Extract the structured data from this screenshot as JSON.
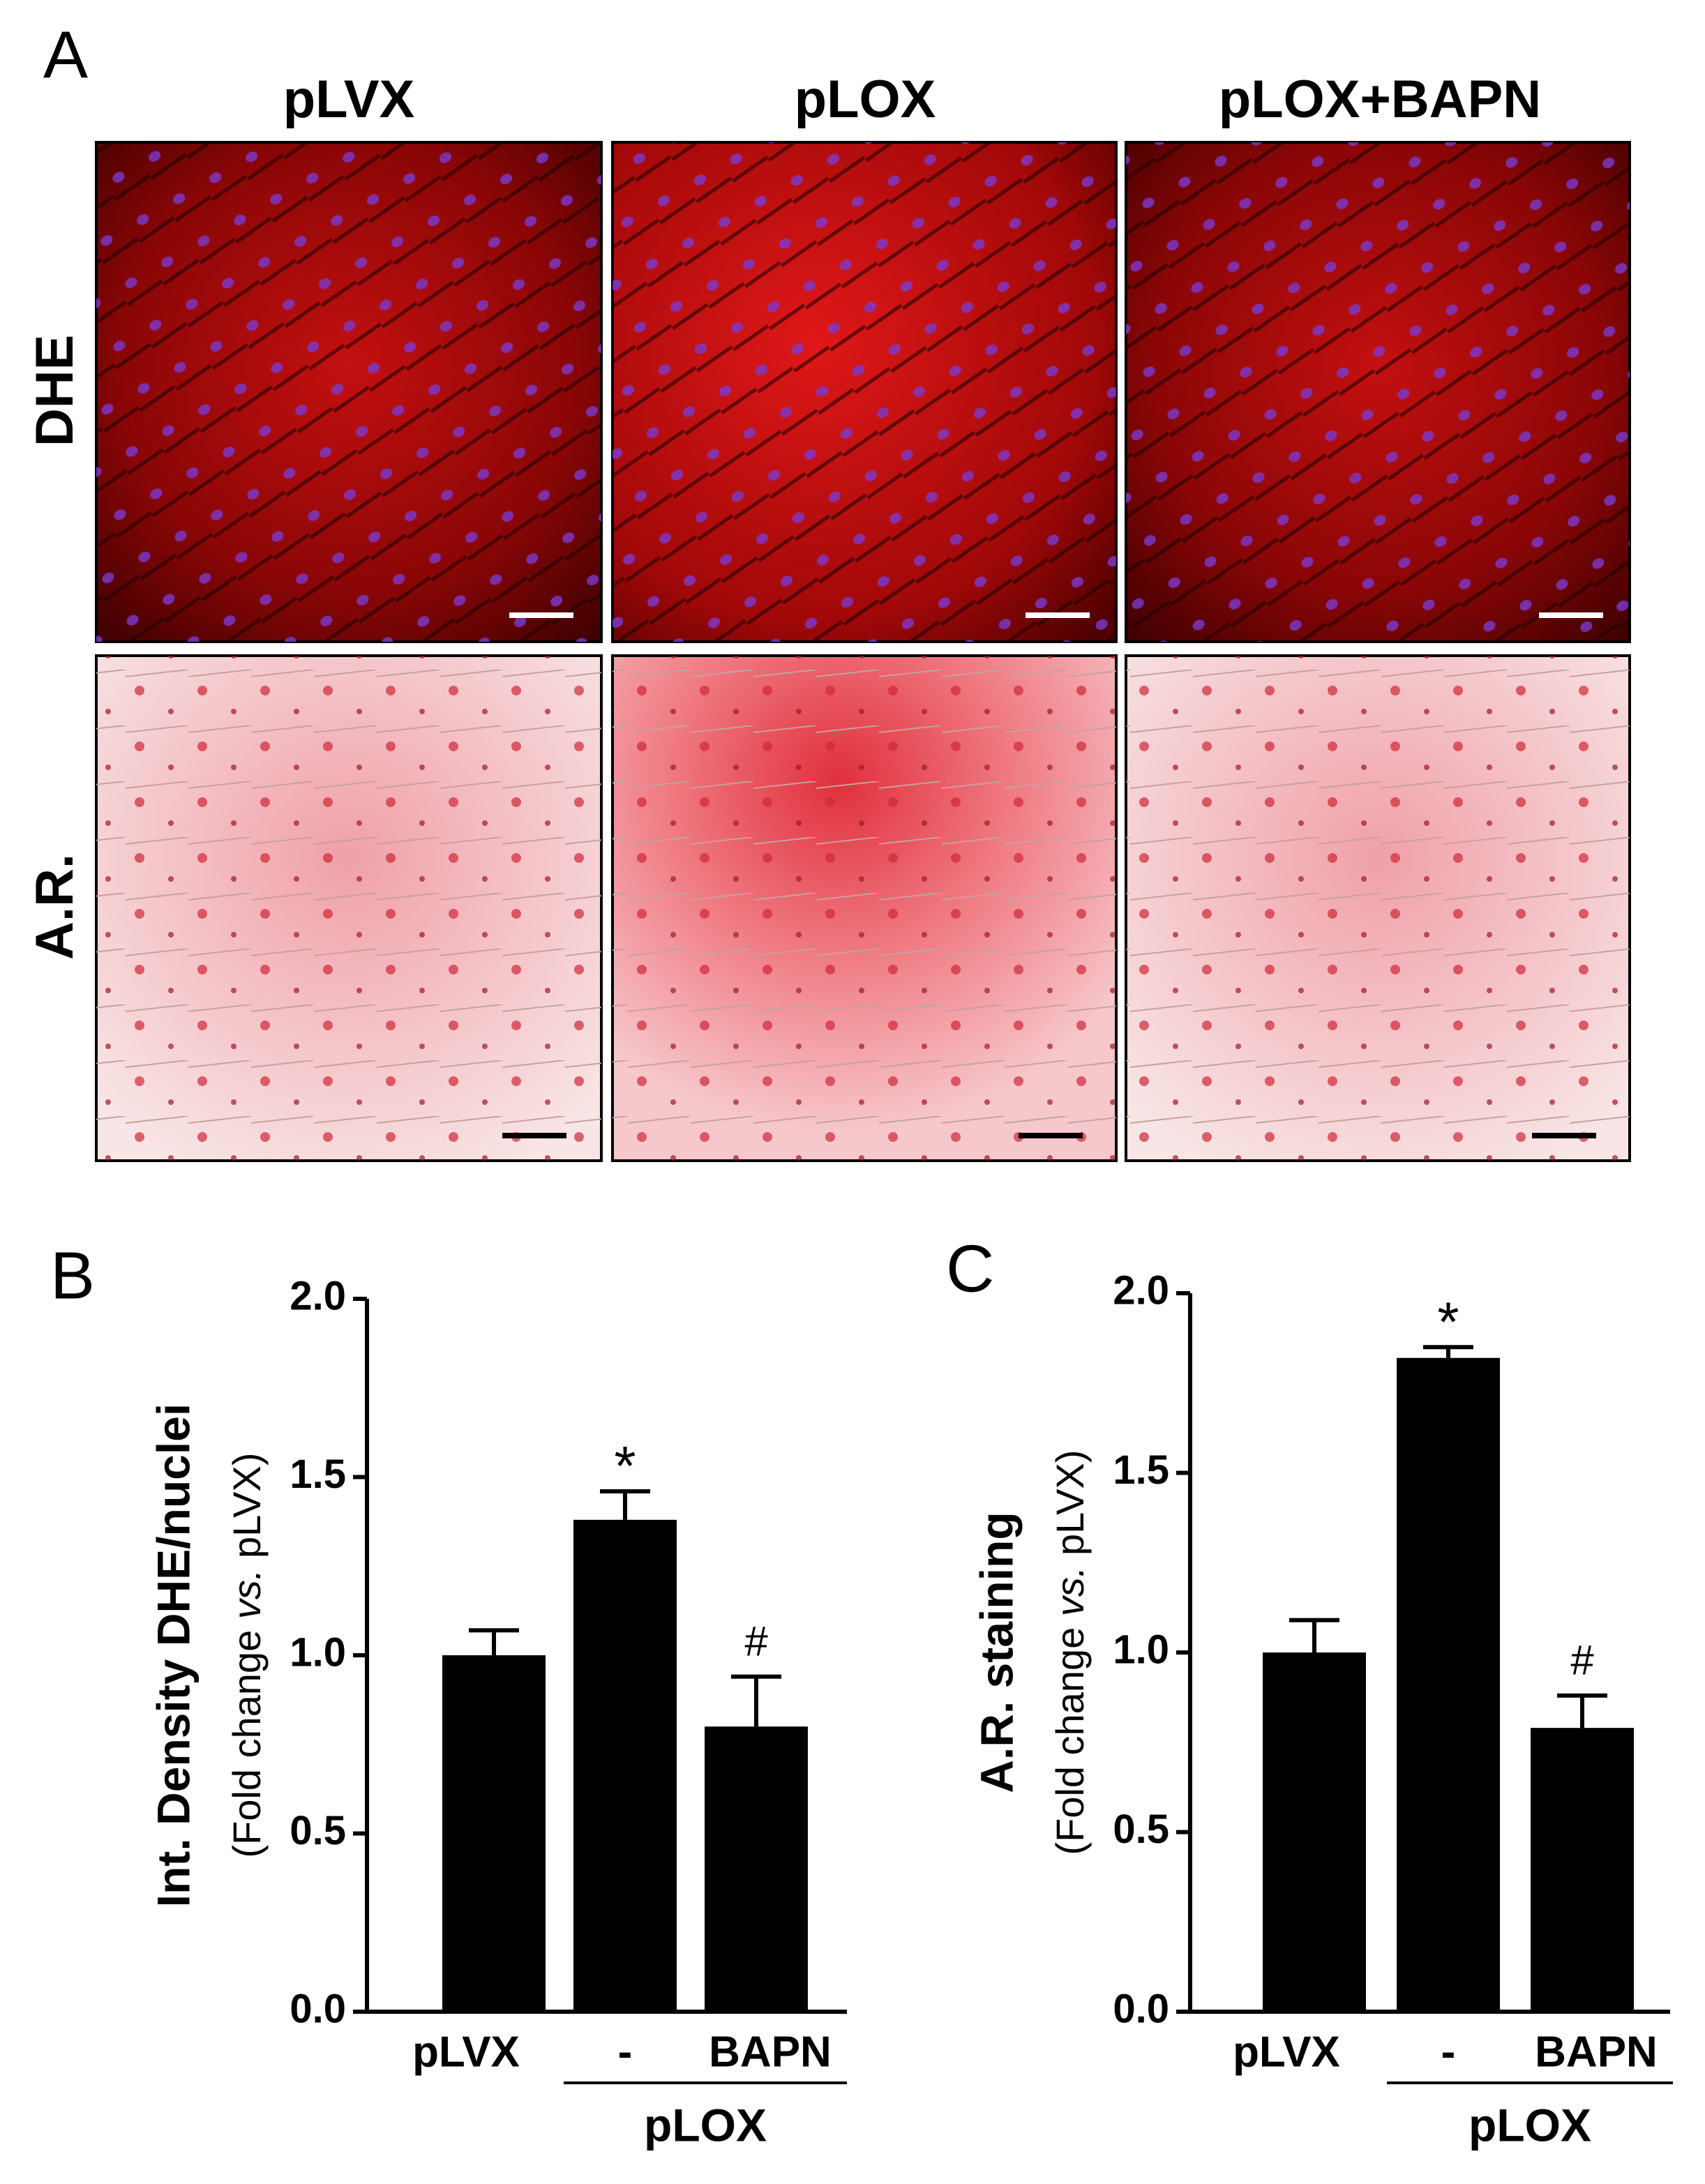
{
  "panel_a": {
    "letter": "A",
    "columns": [
      "pLVX",
      "pLOX",
      "pLOX+BAPN"
    ],
    "rows": [
      "DHE",
      "A.R."
    ]
  },
  "chart_data": [
    {
      "type": "bar",
      "letter": "B",
      "y_label": "Int. Density DHE/nuclei",
      "y_label_sub": [
        "(Fold change ",
        "vs.",
        " pLVX)"
      ],
      "categories": [
        "pLVX",
        "-",
        "BAPN"
      ],
      "group_label": "pLOX",
      "values": [
        1.0,
        1.38,
        0.8
      ],
      "errors": [
        0.07,
        0.08,
        0.14
      ],
      "annotations": [
        null,
        "*",
        "#"
      ],
      "color": "#000000",
      "ylim": [
        0,
        2
      ],
      "yticks": [
        {
          "value": 0,
          "label": "0.0"
        },
        {
          "value": 0.5,
          "label": "0.5"
        },
        {
          "value": 1,
          "label": "1.0"
        },
        {
          "value": 1.5,
          "label": "1.5"
        },
        {
          "value": 2,
          "label": "2.0"
        }
      ]
    },
    {
      "type": "bar",
      "letter": "C",
      "y_label": "A.R. staining",
      "y_label_sub": [
        "(Fold change ",
        "vs.",
        " pLVX)"
      ],
      "categories": [
        "pLVX",
        "-",
        "BAPN"
      ],
      "group_label": "pLOX",
      "values": [
        1.0,
        1.82,
        0.79
      ],
      "errors": [
        0.09,
        0.03,
        0.09
      ],
      "annotations": [
        null,
        "*",
        "#"
      ],
      "color": "#000000",
      "ylim": [
        0,
        2
      ],
      "yticks": [
        {
          "value": 0,
          "label": "0.0"
        },
        {
          "value": 0.5,
          "label": "0.5"
        },
        {
          "value": 1,
          "label": "1.0"
        },
        {
          "value": 1.5,
          "label": "1.5"
        },
        {
          "value": 2,
          "label": "2.0"
        }
      ]
    }
  ]
}
